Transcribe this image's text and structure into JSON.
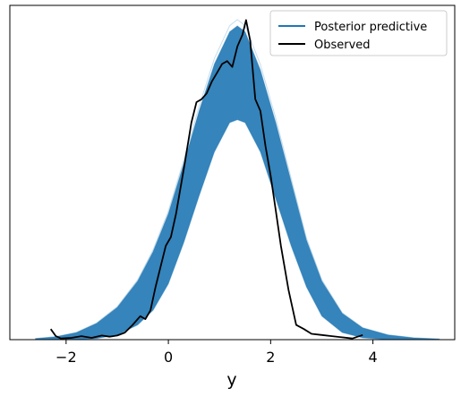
{
  "chart_data": {
    "type": "line",
    "title": "",
    "xlabel": "y",
    "ylabel": "",
    "xlim": [
      -3.1,
      5.6
    ],
    "ylim": [
      0,
      0.57
    ],
    "xticks": [
      -2,
      0,
      2,
      4
    ],
    "xtick_labels": [
      "−2",
      "0",
      "2",
      "4"
    ],
    "yticks_shown": false,
    "grid": false,
    "legend_position": "top-right",
    "series": [
      {
        "name": "Posterior predictive",
        "color": "#1f77b4",
        "kind": "band",
        "x": [
          -2.6,
          -2.2,
          -1.8,
          -1.4,
          -1.0,
          -0.6,
          -0.3,
          0.0,
          0.3,
          0.6,
          0.9,
          1.2,
          1.35,
          1.5,
          1.8,
          2.1,
          2.4,
          2.7,
          3.0,
          3.4,
          3.8,
          4.3,
          4.8,
          5.3
        ],
        "upper": [
          0.002,
          0.005,
          0.012,
          0.028,
          0.055,
          0.1,
          0.15,
          0.215,
          0.3,
          0.39,
          0.47,
          0.525,
          0.535,
          0.525,
          0.46,
          0.37,
          0.27,
          0.17,
          0.1,
          0.045,
          0.02,
          0.008,
          0.003,
          0.001
        ],
        "lower": [
          0.0,
          0.0,
          0.0,
          0.002,
          0.008,
          0.025,
          0.05,
          0.095,
          0.165,
          0.245,
          0.32,
          0.37,
          0.375,
          0.37,
          0.32,
          0.24,
          0.16,
          0.09,
          0.04,
          0.012,
          0.003,
          0.0,
          0.0,
          0.0
        ]
      },
      {
        "name": "Observed",
        "color": "#000000",
        "kind": "line",
        "x": [
          -2.3,
          -2.2,
          -2.1,
          -1.9,
          -1.7,
          -1.5,
          -1.3,
          -1.15,
          -1.0,
          -0.85,
          -0.7,
          -0.55,
          -0.45,
          -0.35,
          -0.25,
          -0.15,
          -0.05,
          0.05,
          0.15,
          0.3,
          0.45,
          0.55,
          0.65,
          0.75,
          0.85,
          0.95,
          1.05,
          1.15,
          1.25,
          1.35,
          1.45,
          1.52,
          1.6,
          1.7,
          1.8,
          1.9,
          2.0,
          2.1,
          2.2,
          2.35,
          2.5,
          2.65,
          2.8,
          3.0,
          3.2,
          3.4,
          3.6,
          3.8
        ],
        "y": [
          0.018,
          0.006,
          0.002,
          0.003,
          0.006,
          0.003,
          0.007,
          0.005,
          0.007,
          0.012,
          0.025,
          0.04,
          0.035,
          0.05,
          0.09,
          0.125,
          0.16,
          0.175,
          0.215,
          0.29,
          0.37,
          0.405,
          0.41,
          0.42,
          0.44,
          0.455,
          0.47,
          0.475,
          0.465,
          0.5,
          0.52,
          0.545,
          0.51,
          0.41,
          0.39,
          0.33,
          0.28,
          0.22,
          0.16,
          0.085,
          0.025,
          0.018,
          0.01,
          0.008,
          0.006,
          0.004,
          0.002,
          0.008
        ]
      }
    ]
  }
}
